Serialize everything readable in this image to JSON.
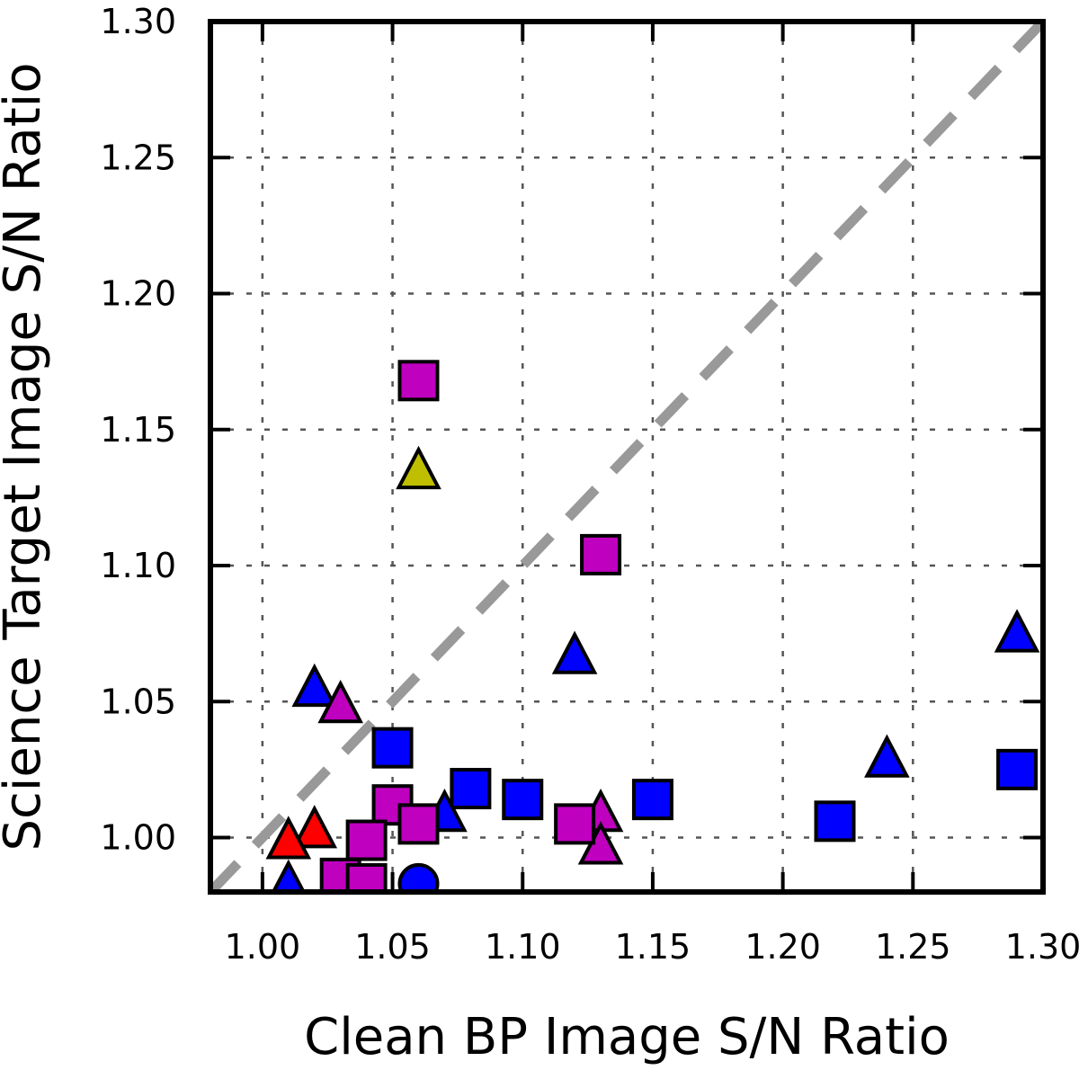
{
  "chart_data": {
    "type": "scatter",
    "title": "",
    "xlabel": "Clean BP Image S/N Ratio",
    "ylabel": "Science Target Image S/N Ratio",
    "xlim": [
      0.98,
      1.3
    ],
    "ylim": [
      0.98,
      1.3
    ],
    "x_ticks": [
      "1.00",
      "1.05",
      "1.10",
      "1.15",
      "1.20",
      "1.25",
      "1.30"
    ],
    "y_ticks": [
      "1.00",
      "1.05",
      "1.10",
      "1.15",
      "1.20",
      "1.25",
      "1.30"
    ],
    "x_tick_values": [
      1.0,
      1.05,
      1.1,
      1.15,
      1.2,
      1.25,
      1.3
    ],
    "y_tick_values": [
      1.0,
      1.05,
      1.1,
      1.15,
      1.2,
      1.25,
      1.3
    ],
    "grid": true,
    "reference_line": {
      "from": [
        0.98,
        0.98
      ],
      "to": [
        1.3,
        1.3
      ],
      "style": "dashed",
      "color": "#999999"
    },
    "colors": {
      "blue": "#0000ff",
      "magenta": "#bf00bf",
      "red": "#ff0000",
      "yellow": "#bfbf00"
    },
    "points": [
      {
        "x": 1.06,
        "y": 1.168,
        "marker": "square",
        "color": "magenta"
      },
      {
        "x": 1.06,
        "y": 1.134,
        "marker": "triangle",
        "color": "yellow"
      },
      {
        "x": 1.13,
        "y": 1.104,
        "marker": "square",
        "color": "magenta"
      },
      {
        "x": 1.12,
        "y": 1.066,
        "marker": "triangle",
        "color": "blue"
      },
      {
        "x": 1.29,
        "y": 1.074,
        "marker": "triangle",
        "color": "blue"
      },
      {
        "x": 1.02,
        "y": 1.054,
        "marker": "triangle",
        "color": "blue"
      },
      {
        "x": 1.03,
        "y": 1.048,
        "marker": "triangle",
        "color": "magenta"
      },
      {
        "x": 1.05,
        "y": 1.033,
        "marker": "square",
        "color": "blue"
      },
      {
        "x": 1.24,
        "y": 1.028,
        "marker": "triangle",
        "color": "blue"
      },
      {
        "x": 1.29,
        "y": 1.025,
        "marker": "square",
        "color": "blue"
      },
      {
        "x": 1.08,
        "y": 1.018,
        "marker": "square",
        "color": "blue"
      },
      {
        "x": 1.1,
        "y": 1.014,
        "marker": "square",
        "color": "blue"
      },
      {
        "x": 1.15,
        "y": 1.014,
        "marker": "square",
        "color": "blue"
      },
      {
        "x": 1.07,
        "y": 1.008,
        "marker": "triangle",
        "color": "blue"
      },
      {
        "x": 1.13,
        "y": 1.008,
        "marker": "triangle",
        "color": "magenta"
      },
      {
        "x": 1.13,
        "y": 0.996,
        "marker": "triangle",
        "color": "magenta"
      },
      {
        "x": 1.05,
        "y": 1.012,
        "marker": "square",
        "color": "magenta"
      },
      {
        "x": 1.22,
        "y": 1.006,
        "marker": "square",
        "color": "blue"
      },
      {
        "x": 1.06,
        "y": 1.005,
        "marker": "square",
        "color": "magenta"
      },
      {
        "x": 1.12,
        "y": 1.005,
        "marker": "square",
        "color": "magenta"
      },
      {
        "x": 1.02,
        "y": 1.002,
        "marker": "triangle",
        "color": "red"
      },
      {
        "x": 1.01,
        "y": 0.998,
        "marker": "triangle",
        "color": "red"
      },
      {
        "x": 1.04,
        "y": 0.999,
        "marker": "square",
        "color": "magenta"
      },
      {
        "x": 1.03,
        "y": 0.985,
        "marker": "square",
        "color": "magenta"
      },
      {
        "x": 1.04,
        "y": 0.983,
        "marker": "square",
        "color": "magenta"
      },
      {
        "x": 1.01,
        "y": 0.982,
        "marker": "triangle",
        "color": "blue"
      },
      {
        "x": 1.06,
        "y": 0.983,
        "marker": "circle",
        "color": "blue"
      }
    ]
  }
}
